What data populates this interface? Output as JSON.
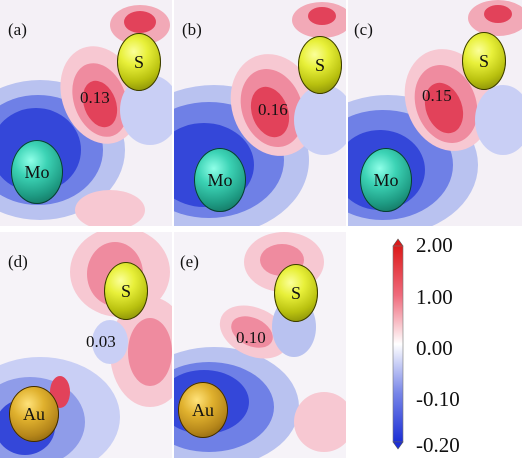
{
  "panels": [
    {
      "label": "(a)",
      "value": "0.13",
      "atoms": [
        "S",
        "Mo"
      ]
    },
    {
      "label": "(b)",
      "value": "0.16",
      "atoms": [
        "S",
        "Mo"
      ]
    },
    {
      "label": "(c)",
      "value": "0.15",
      "atoms": [
        "S",
        "Mo"
      ]
    },
    {
      "label": "(d)",
      "value": "0.03",
      "atoms": [
        "S",
        "Au"
      ]
    },
    {
      "label": "(e)",
      "value": "0.10",
      "atoms": [
        "S",
        "Au"
      ]
    }
  ],
  "colorbar": {
    "ticks": [
      "2.00",
      "1.00",
      "0.00",
      "-0.10",
      "-0.20"
    ],
    "colors": {
      "max": "#dc1a1a",
      "mid": "#ffffff",
      "min": "#1c2fd6"
    }
  },
  "atom_colors": {
    "S": "#e8f03a",
    "Mo": "#3cd3b5",
    "Au": "#e0b12e"
  }
}
